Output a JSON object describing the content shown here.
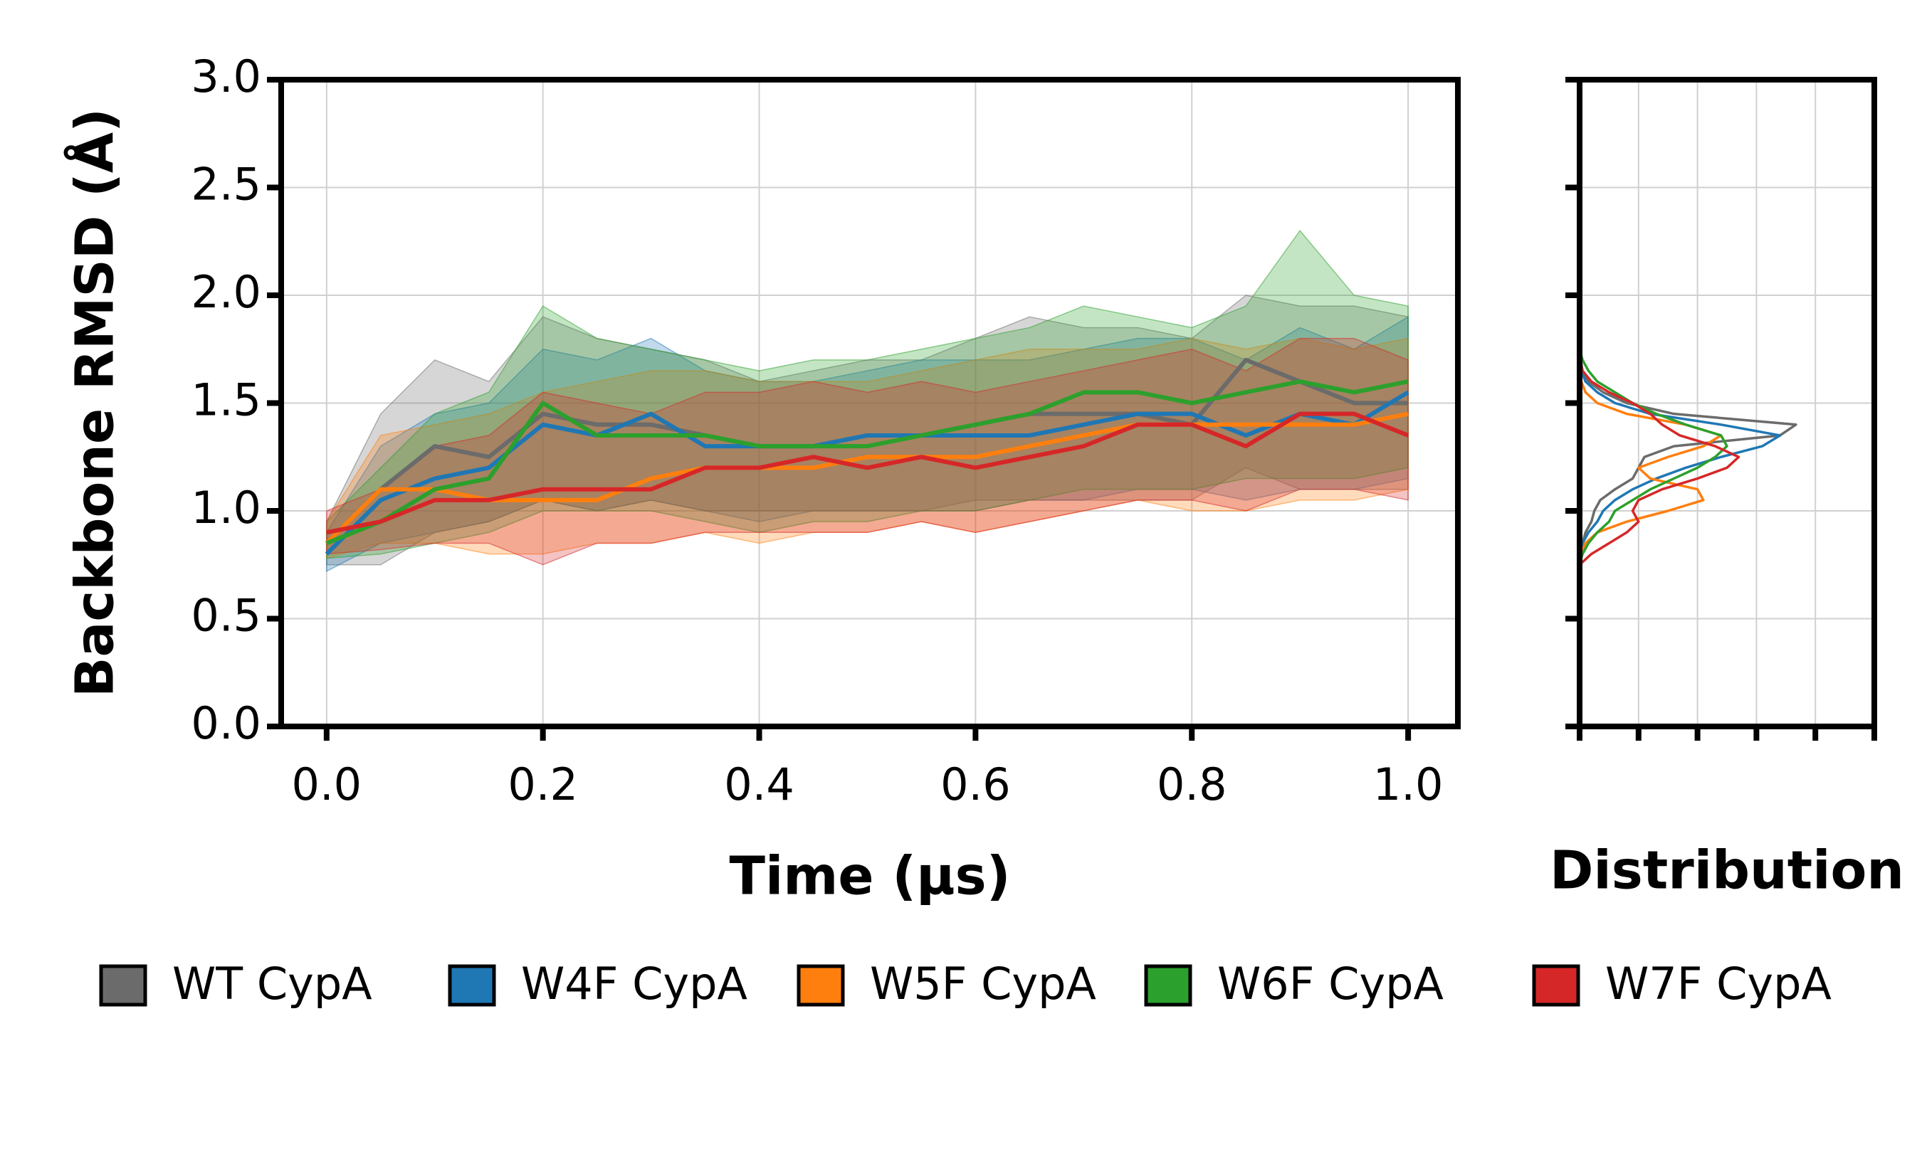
{
  "chart_data": [
    {
      "type": "line",
      "xlabel": "Time (µs)",
      "ylabel": "Backbone RMSD (Å)",
      "xlim": [
        -0.042,
        1.046
      ],
      "ylim": [
        0,
        3
      ],
      "xticks": [
        {
          "value": 0,
          "label": "0.0"
        },
        0.2,
        0.4,
        0.6,
        0.8,
        {
          "value": 1,
          "label": "1.0"
        }
      ],
      "yticks": [
        {
          "value": 0,
          "label": "0.0"
        },
        0.5,
        {
          "value": 1,
          "label": "1.0"
        },
        1.5,
        {
          "value": 2,
          "label": "2.0"
        },
        2.5,
        {
          "value": 3,
          "label": "3.0"
        }
      ],
      "grid": true,
      "x": [
        0,
        0.05,
        0.1,
        0.15,
        0.2,
        0.25,
        0.3,
        0.35,
        0.4,
        0.45,
        0.5,
        0.55,
        0.6,
        0.65,
        0.7,
        0.75,
        0.8,
        0.85,
        0.9,
        0.95,
        1.0
      ],
      "series": [
        {
          "name": "WT CypA",
          "color": "#6b6b6b",
          "values": [
            0.85,
            1.1,
            1.3,
            1.25,
            1.45,
            1.4,
            1.4,
            1.35,
            1.3,
            1.3,
            1.35,
            1.35,
            1.4,
            1.45,
            1.45,
            1.45,
            1.4,
            1.7,
            1.6,
            1.5,
            1.5
          ],
          "lower": [
            0.75,
            0.75,
            0.9,
            0.95,
            1.05,
            1.0,
            1.05,
            1.0,
            1.0,
            1.0,
            1.0,
            1.0,
            1.05,
            1.05,
            1.05,
            1.05,
            1.05,
            1.2,
            1.1,
            1.1,
            1.1
          ],
          "upper": [
            0.95,
            1.45,
            1.7,
            1.6,
            1.9,
            1.8,
            1.75,
            1.7,
            1.6,
            1.65,
            1.7,
            1.7,
            1.8,
            1.9,
            1.85,
            1.85,
            1.8,
            2.0,
            1.95,
            1.95,
            1.9
          ]
        },
        {
          "name": "W4F CypA",
          "color": "#1f77b4",
          "values": [
            0.8,
            1.05,
            1.15,
            1.2,
            1.4,
            1.35,
            1.45,
            1.3,
            1.3,
            1.3,
            1.35,
            1.35,
            1.35,
            1.35,
            1.4,
            1.45,
            1.45,
            1.35,
            1.45,
            1.4,
            1.55
          ],
          "lower": [
            0.72,
            0.85,
            0.9,
            0.95,
            1.05,
            1.0,
            1.05,
            1.0,
            0.95,
            1.0,
            1.0,
            1.0,
            1.0,
            1.05,
            1.05,
            1.1,
            1.1,
            1.05,
            1.1,
            1.1,
            1.15
          ],
          "upper": [
            0.9,
            1.3,
            1.45,
            1.5,
            1.75,
            1.7,
            1.8,
            1.65,
            1.6,
            1.6,
            1.65,
            1.7,
            1.7,
            1.7,
            1.75,
            1.8,
            1.8,
            1.7,
            1.85,
            1.75,
            1.9
          ]
        },
        {
          "name": "W5F CypA",
          "color": "#ff7f0e",
          "values": [
            0.85,
            1.1,
            1.1,
            1.05,
            1.05,
            1.05,
            1.15,
            1.2,
            1.2,
            1.2,
            1.25,
            1.25,
            1.25,
            1.3,
            1.35,
            1.4,
            1.4,
            1.4,
            1.4,
            1.4,
            1.45
          ],
          "lower": [
            0.78,
            0.85,
            0.85,
            0.8,
            0.8,
            0.85,
            0.85,
            0.9,
            0.85,
            0.9,
            0.9,
            0.95,
            0.9,
            0.95,
            1.0,
            1.05,
            1.0,
            1.0,
            1.05,
            1.05,
            1.1
          ],
          "upper": [
            0.95,
            1.35,
            1.4,
            1.45,
            1.55,
            1.6,
            1.65,
            1.65,
            1.6,
            1.6,
            1.6,
            1.65,
            1.7,
            1.75,
            1.75,
            1.75,
            1.8,
            1.75,
            1.8,
            1.75,
            1.8
          ]
        },
        {
          "name": "W6F CypA",
          "color": "#2ca02c",
          "values": [
            0.85,
            0.95,
            1.1,
            1.15,
            1.5,
            1.35,
            1.35,
            1.35,
            1.3,
            1.3,
            1.3,
            1.35,
            1.4,
            1.45,
            1.55,
            1.55,
            1.5,
            1.55,
            1.6,
            1.55,
            1.6
          ],
          "lower": [
            0.78,
            0.8,
            0.85,
            0.9,
            1.0,
            1.0,
            1.0,
            0.95,
            0.9,
            0.95,
            0.95,
            1.0,
            1.0,
            1.05,
            1.1,
            1.1,
            1.1,
            1.15,
            1.15,
            1.15,
            1.2
          ],
          "upper": [
            0.95,
            1.2,
            1.45,
            1.55,
            1.95,
            1.8,
            1.75,
            1.7,
            1.65,
            1.7,
            1.7,
            1.75,
            1.8,
            1.85,
            1.95,
            1.9,
            1.85,
            1.95,
            2.3,
            2.0,
            1.95
          ]
        },
        {
          "name": "W7F CypA",
          "color": "#d62728",
          "values": [
            0.9,
            0.95,
            1.05,
            1.05,
            1.1,
            1.1,
            1.1,
            1.2,
            1.2,
            1.25,
            1.2,
            1.25,
            1.2,
            1.25,
            1.3,
            1.4,
            1.4,
            1.3,
            1.45,
            1.45,
            1.35
          ],
          "lower": [
            0.8,
            0.82,
            0.85,
            0.85,
            0.75,
            0.85,
            0.85,
            0.9,
            0.9,
            0.9,
            0.9,
            0.95,
            0.9,
            0.95,
            1.0,
            1.05,
            1.05,
            1.0,
            1.1,
            1.1,
            1.05
          ],
          "upper": [
            1.0,
            1.1,
            1.3,
            1.35,
            1.55,
            1.5,
            1.45,
            1.55,
            1.55,
            1.6,
            1.55,
            1.6,
            1.55,
            1.6,
            1.65,
            1.7,
            1.75,
            1.65,
            1.8,
            1.8,
            1.7
          ]
        }
      ]
    },
    {
      "type": "density",
      "xlabel": "Distribution",
      "xlim": [
        0,
        5
      ],
      "ylim": [
        0,
        3
      ],
      "xticks": [
        0,
        1,
        2,
        3,
        4,
        5
      ],
      "yticks": [
        0,
        0.5,
        1,
        1.5,
        2,
        2.5,
        3
      ],
      "tick_labels": false,
      "grid": true,
      "y": [
        0.75,
        0.8,
        0.85,
        0.9,
        0.95,
        1.0,
        1.05,
        1.1,
        1.15,
        1.2,
        1.25,
        1.3,
        1.35,
        1.4,
        1.45,
        1.5,
        1.55,
        1.6,
        1.65,
        1.7,
        1.75
      ],
      "series": [
        {
          "color": "#6b6b6b",
          "values": [
            0,
            0.02,
            0.05,
            0.1,
            0.2,
            0.25,
            0.35,
            0.6,
            0.9,
            1.0,
            1.1,
            1.6,
            3.4,
            3.67,
            1.6,
            0.8,
            0.4,
            0.15,
            0.05,
            0.02,
            0
          ]
        },
        {
          "color": "#1f77b4",
          "values": [
            0,
            0,
            0.05,
            0.15,
            0.3,
            0.4,
            0.6,
            0.9,
            1.3,
            1.8,
            2.4,
            3.1,
            3.4,
            2.4,
            1.2,
            0.6,
            0.3,
            0.1,
            0.03,
            0,
            0
          ]
        },
        {
          "color": "#ff7f0e",
          "values": [
            0,
            0.02,
            0.1,
            0.3,
            0.8,
            1.5,
            2.1,
            2.0,
            1.2,
            1.0,
            1.5,
            2.1,
            2.4,
            1.8,
            0.8,
            0.3,
            0.1,
            0.03,
            0,
            0,
            0
          ]
        },
        {
          "color": "#2ca02c",
          "values": [
            0,
            0.05,
            0.15,
            0.3,
            0.5,
            0.6,
            0.9,
            1.2,
            1.6,
            2.0,
            2.3,
            2.5,
            2.4,
            1.8,
            1.3,
            0.9,
            0.6,
            0.3,
            0.15,
            0.05,
            0
          ]
        },
        {
          "color": "#d62728",
          "values": [
            0,
            0.2,
            0.5,
            0.8,
            1.0,
            0.9,
            1.0,
            1.4,
            2.0,
            2.5,
            2.7,
            2.3,
            1.7,
            1.4,
            1.2,
            0.9,
            0.5,
            0.2,
            0.05,
            0,
            0
          ]
        }
      ]
    }
  ]
}
